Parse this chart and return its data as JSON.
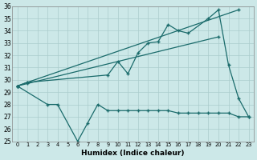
{
  "bg_color": "#cce8e8",
  "line_color": "#1a6b6b",
  "grid_color": "#aacccc",
  "ylim": [
    25,
    36
  ],
  "xlim": [
    -0.5,
    23.5
  ],
  "yticks": [
    25,
    26,
    27,
    28,
    29,
    30,
    31,
    32,
    33,
    34,
    35,
    36
  ],
  "xticks": [
    0,
    1,
    2,
    3,
    4,
    5,
    6,
    7,
    8,
    9,
    10,
    11,
    12,
    13,
    14,
    15,
    16,
    17,
    18,
    19,
    20,
    21,
    22,
    23
  ],
  "xlabel": "Humidex (Indice chaleur)",
  "line1_x": [
    0,
    1,
    22
  ],
  "line1_y": [
    29.5,
    29.8,
    35.7
  ],
  "line2_x": [
    0,
    1,
    20
  ],
  "line2_y": [
    29.5,
    29.7,
    33.5
  ],
  "line3_x": [
    0,
    1,
    9,
    10,
    11,
    12,
    13,
    14,
    15,
    16,
    17,
    19,
    20,
    21,
    22,
    23
  ],
  "line3_y": [
    29.5,
    29.8,
    30.4,
    31.5,
    30.5,
    32.2,
    33.0,
    33.1,
    34.5,
    34.0,
    33.8,
    35.0,
    35.7,
    31.2,
    28.5,
    27.0
  ],
  "line4_x": [
    0,
    3,
    4,
    6,
    7,
    8,
    9,
    10,
    11,
    12,
    13,
    14,
    15,
    16,
    17,
    18,
    19,
    20,
    21,
    22,
    23
  ],
  "line4_y": [
    29.5,
    28.0,
    28.0,
    25.0,
    26.5,
    28.0,
    27.5,
    27.5,
    27.5,
    27.5,
    27.5,
    27.5,
    27.5,
    27.3,
    27.3,
    27.3,
    27.3,
    27.3,
    27.3,
    27.0,
    27.0
  ]
}
